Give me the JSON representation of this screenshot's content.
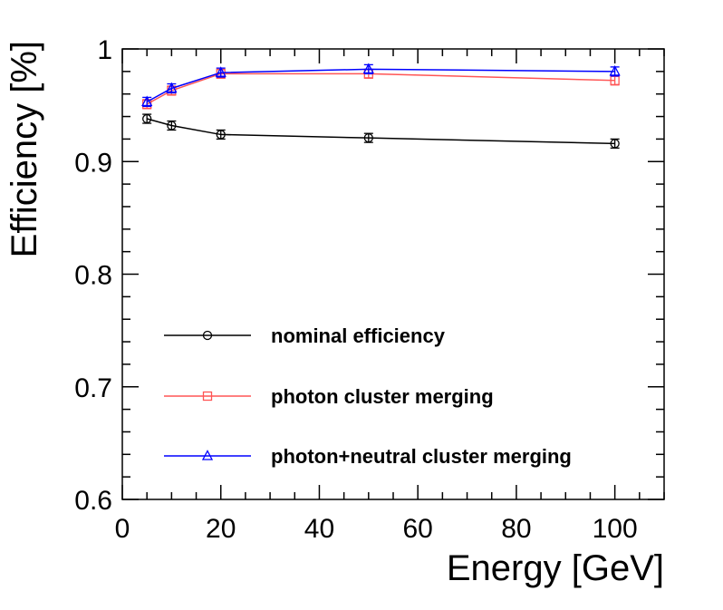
{
  "chart_data": {
    "type": "line",
    "title": "",
    "xlabel": "Energy [GeV]",
    "ylabel": "Efficiency [%]",
    "xlim": [
      0,
      110
    ],
    "ylim": [
      0.6,
      1.0
    ],
    "x_ticks": [
      0,
      20,
      40,
      60,
      80,
      100
    ],
    "x_tick_labels": [
      "0",
      "20",
      "40",
      "60",
      "80",
      "100"
    ],
    "y_ticks": [
      0.6,
      0.7,
      0.8,
      0.9,
      1.0
    ],
    "y_tick_labels": [
      "0.6",
      "0.7",
      "0.8",
      "0.9",
      "1"
    ],
    "grid": false,
    "legend_position": "bottom-left",
    "series": [
      {
        "name": "nominal efficiency",
        "color": "#000000",
        "marker": "circle",
        "x": [
          5,
          10,
          20,
          50,
          100
        ],
        "y": [
          0.938,
          0.932,
          0.924,
          0.921,
          0.916
        ],
        "err": [
          0.004,
          0.004,
          0.004,
          0.004,
          0.004
        ]
      },
      {
        "name": "photon cluster merging",
        "color": "#ff5555",
        "marker": "square",
        "x": [
          5,
          10,
          20,
          50,
          100
        ],
        "y": [
          0.951,
          0.963,
          0.978,
          0.978,
          0.972
        ],
        "err": [
          0.004,
          0.004,
          0.004,
          0.004,
          0.004
        ]
      },
      {
        "name": "photon+neutral cluster merging",
        "color": "#0000ff",
        "marker": "triangle",
        "x": [
          5,
          10,
          20,
          50,
          100
        ],
        "y": [
          0.953,
          0.965,
          0.979,
          0.982,
          0.98
        ],
        "err": [
          0.004,
          0.004,
          0.004,
          0.004,
          0.004
        ]
      }
    ]
  }
}
